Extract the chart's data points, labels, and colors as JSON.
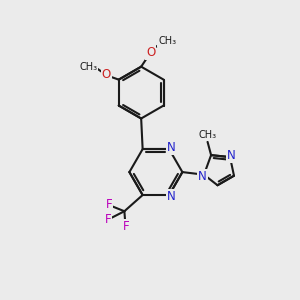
{
  "bg_color": "#ebebeb",
  "bond_color": "#1a1a1a",
  "nitrogen_color": "#2222cc",
  "oxygen_color": "#cc2222",
  "fluorine_color": "#bb00bb",
  "bond_width": 1.5,
  "font_size": 8.5,
  "fig_size": [
    3.0,
    3.0
  ],
  "xlim": [
    0,
    10
  ],
  "ylim": [
    0,
    10
  ]
}
